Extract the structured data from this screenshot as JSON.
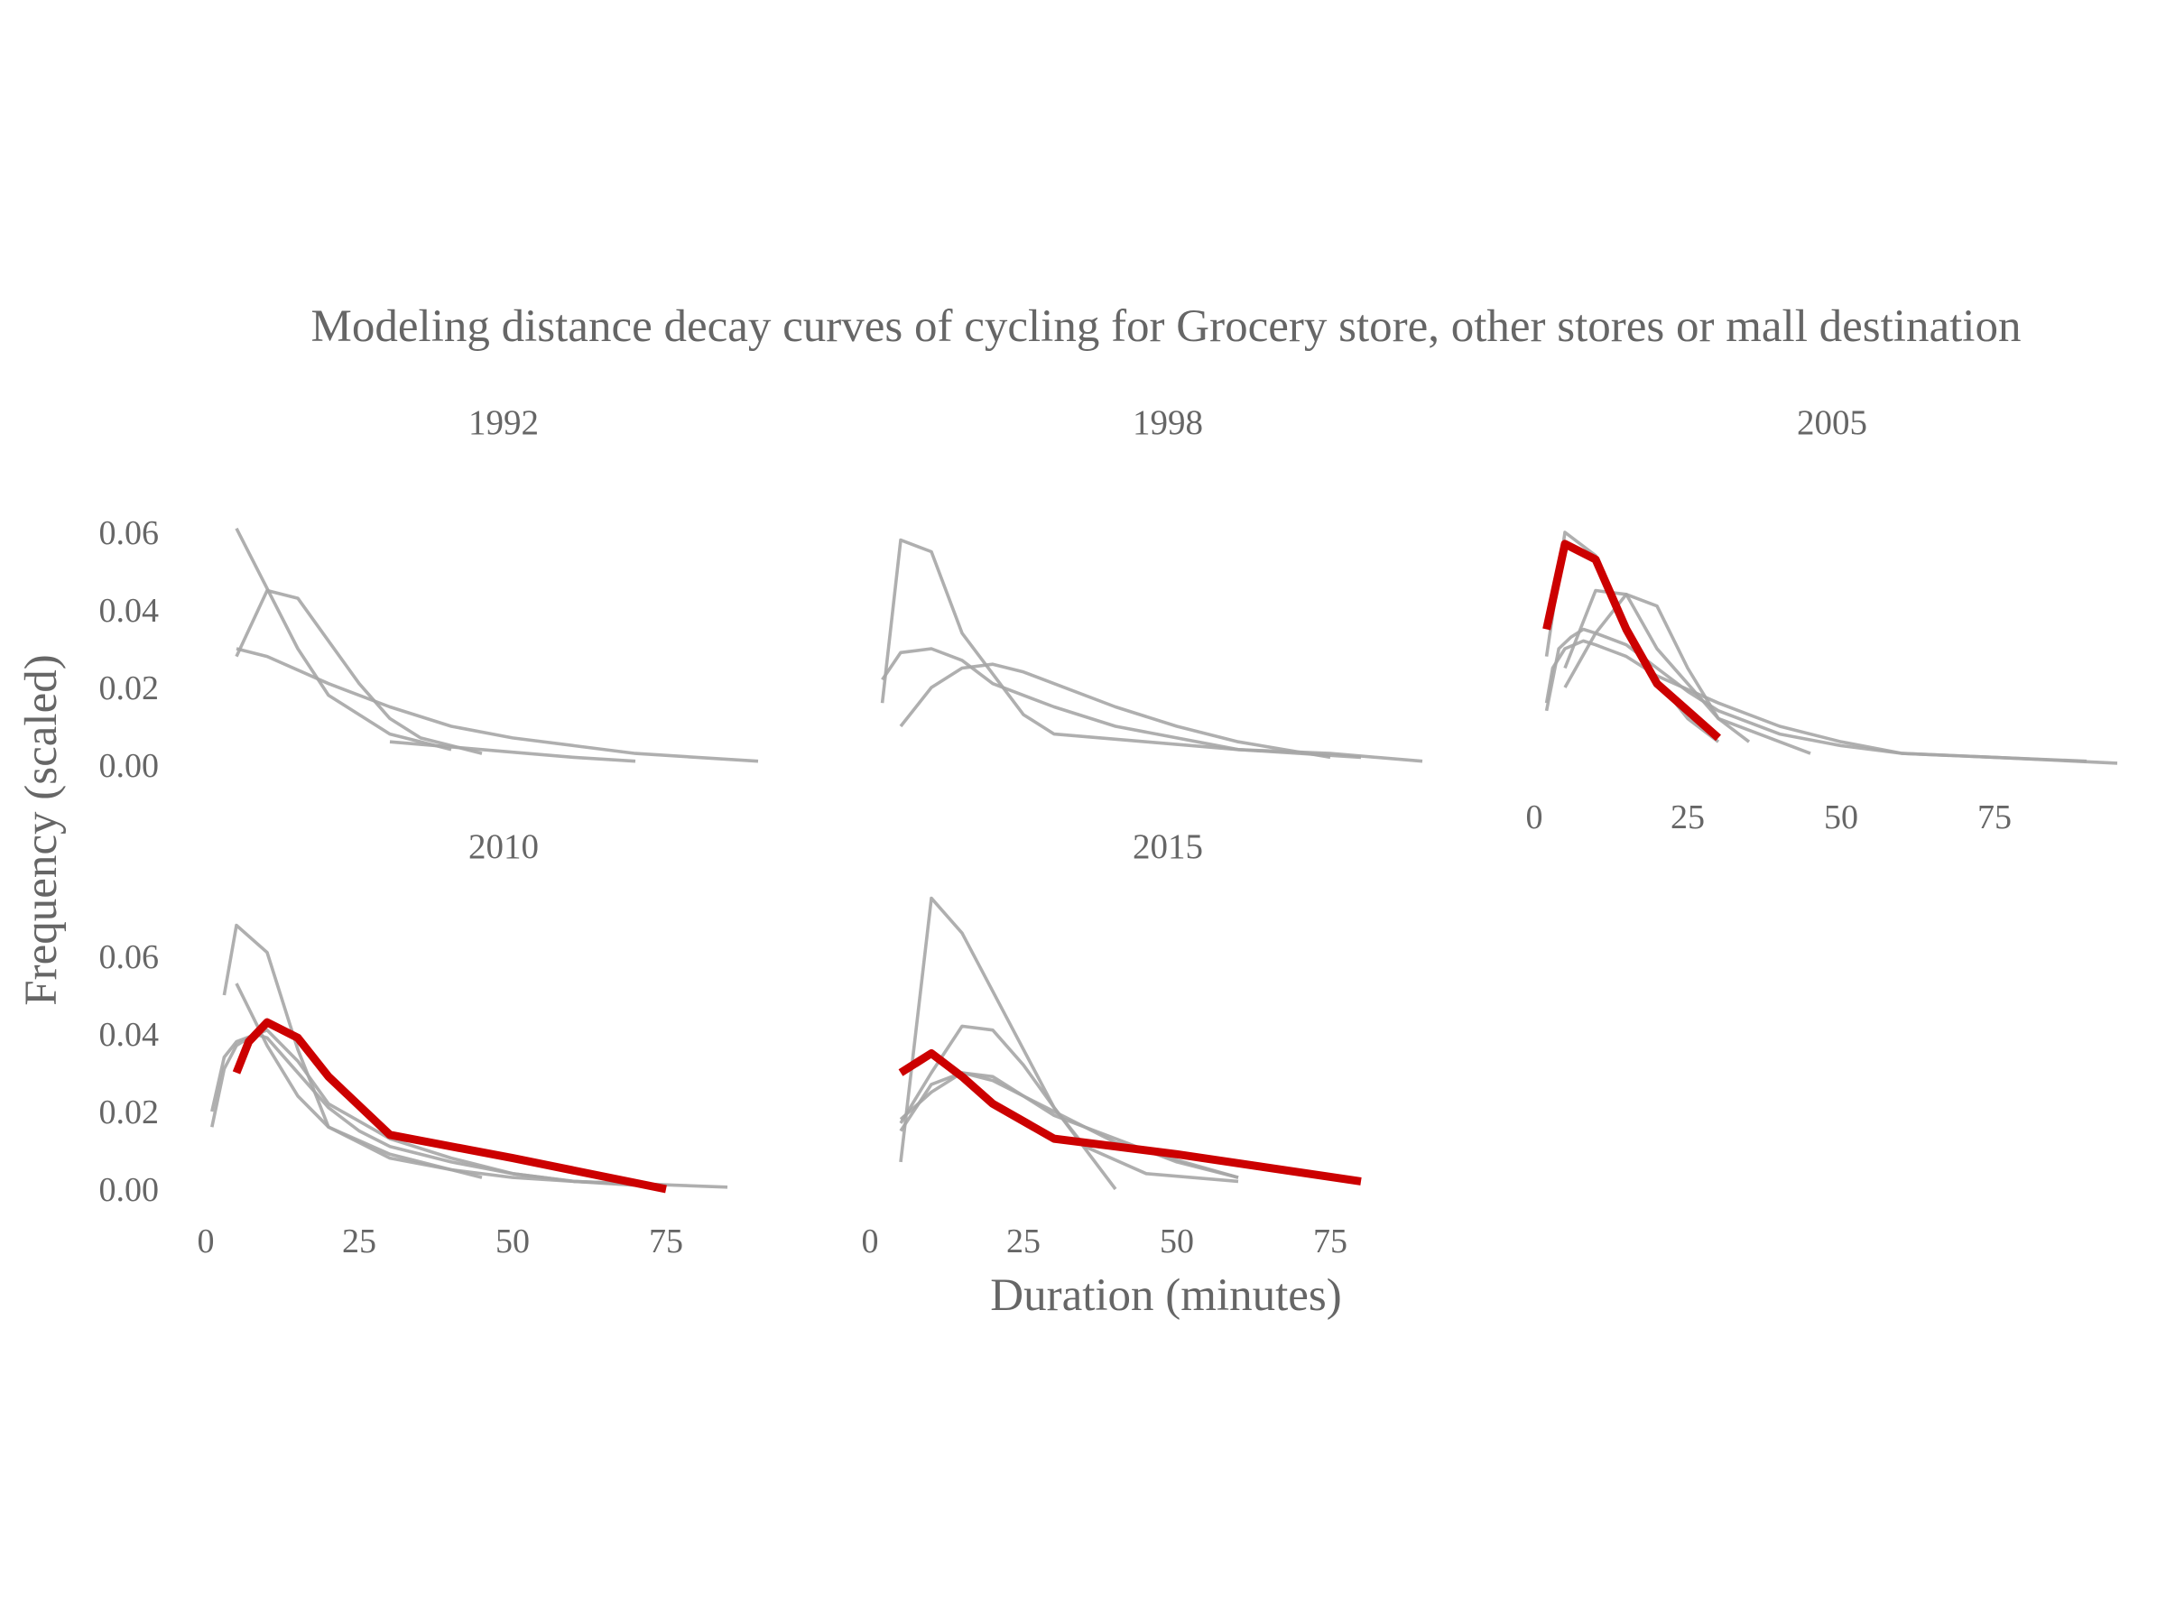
{
  "chart_data": {
    "type": "line",
    "title": "Modeling distance decay curves of cycling for Grocery store, other stores or mall destination",
    "xlabel": "Duration (minutes)",
    "ylabel": "Frequency (scaled)",
    "xlim": [
      0,
      95
    ],
    "ylim": [
      0,
      0.065
    ],
    "x_ticks": [
      "0",
      "25",
      "50",
      "75"
    ],
    "y_ticks": [
      "0.00",
      "0.02",
      "0.04",
      "0.06"
    ],
    "grid": false,
    "colors": {
      "background_curve": "#a6a6a6",
      "highlight_curve": "#cc0000",
      "text": "#666666"
    },
    "panels": [
      {
        "label": "1992",
        "series": [
          {
            "highlight": false,
            "x": [
              5,
              15,
              20,
              30,
              40
            ],
            "y": [
              0.061,
              0.03,
              0.018,
              0.008,
              0.004
            ]
          },
          {
            "highlight": false,
            "x": [
              5,
              10,
              15,
              20,
              25,
              30,
              35,
              45
            ],
            "y": [
              0.028,
              0.045,
              0.043,
              0.032,
              0.021,
              0.012,
              0.007,
              0.003
            ]
          },
          {
            "highlight": false,
            "x": [
              5,
              10,
              20,
              30,
              40,
              50,
              60,
              70,
              80,
              90
            ],
            "y": [
              0.03,
              0.028,
              0.021,
              0.015,
              0.01,
              0.007,
              0.005,
              0.003,
              0.002,
              0.001
            ]
          },
          {
            "highlight": false,
            "x": [
              30,
              45,
              60,
              70
            ],
            "y": [
              0.006,
              0.004,
              0.002,
              0.001
            ]
          }
        ]
      },
      {
        "label": "1998",
        "series": [
          {
            "highlight": false,
            "x": [
              2,
              5,
              10,
              15,
              25,
              30,
              45,
              60,
              70,
              80
            ],
            "y": [
              0.016,
              0.058,
              0.055,
              0.034,
              0.013,
              0.008,
              0.006,
              0.004,
              0.003,
              0.002
            ]
          },
          {
            "highlight": false,
            "x": [
              2,
              5,
              10,
              15,
              20,
              30,
              40,
              50,
              60,
              75,
              90
            ],
            "y": [
              0.022,
              0.029,
              0.03,
              0.027,
              0.021,
              0.015,
              0.01,
              0.007,
              0.004,
              0.003,
              0.001
            ]
          },
          {
            "highlight": false,
            "x": [
              5,
              10,
              15,
              20,
              25,
              30,
              40,
              50,
              60,
              75
            ],
            "y": [
              0.01,
              0.02,
              0.025,
              0.026,
              0.024,
              0.021,
              0.015,
              0.01,
              0.006,
              0.002
            ]
          }
        ]
      },
      {
        "label": "2005",
        "series": [
          {
            "highlight": false,
            "x": [
              2,
              5,
              10,
              15,
              20,
              25,
              30
            ],
            "y": [
              0.028,
              0.06,
              0.054,
              0.036,
              0.022,
              0.012,
              0.006
            ]
          },
          {
            "highlight": false,
            "x": [
              5,
              10,
              15,
              20,
              25,
              30,
              35
            ],
            "y": [
              0.02,
              0.034,
              0.044,
              0.041,
              0.025,
              0.012,
              0.006
            ]
          },
          {
            "highlight": false,
            "x": [
              2,
              3,
              5,
              8,
              10,
              15,
              20,
              30,
              40,
              50,
              60,
              75,
              90
            ],
            "y": [
              0.016,
              0.025,
              0.03,
              0.032,
              0.031,
              0.028,
              0.023,
              0.016,
              0.01,
              0.006,
              0.003,
              0.002,
              0.001
            ]
          },
          {
            "highlight": false,
            "x": [
              2,
              4,
              6,
              8,
              10,
              15,
              20,
              25,
              30,
              40,
              50,
              60,
              75,
              95
            ],
            "y": [
              0.014,
              0.03,
              0.033,
              0.035,
              0.034,
              0.031,
              0.025,
              0.019,
              0.014,
              0.008,
              0.005,
              0.003,
              0.002,
              0.0005
            ]
          },
          {
            "highlight": false,
            "x": [
              5,
              10,
              15,
              20,
              30,
              35,
              45
            ],
            "y": [
              0.025,
              0.045,
              0.044,
              0.03,
              0.012,
              0.009,
              0.003
            ]
          },
          {
            "highlight": true,
            "x": [
              2,
              5,
              10,
              15,
              20,
              25,
              30
            ],
            "y": [
              0.035,
              0.057,
              0.053,
              0.035,
              0.021,
              0.014,
              0.007
            ]
          }
        ]
      },
      {
        "label": "2010",
        "series": [
          {
            "highlight": false,
            "x": [
              3,
              5,
              10,
              15,
              20,
              25,
              30,
              40,
              50,
              60,
              85
            ],
            "y": [
              0.05,
              0.068,
              0.061,
              0.036,
              0.016,
              0.012,
              0.008,
              0.005,
              0.003,
              0.002,
              0.0005
            ]
          },
          {
            "highlight": false,
            "x": [
              5,
              10,
              15,
              20,
              30,
              40,
              45
            ],
            "y": [
              0.053,
              0.037,
              0.024,
              0.016,
              0.009,
              0.005,
              0.003
            ]
          },
          {
            "highlight": false,
            "x": [
              1,
              3,
              5,
              10,
              15,
              20,
              30,
              40,
              50,
              60,
              70
            ],
            "y": [
              0.02,
              0.034,
              0.038,
              0.041,
              0.033,
              0.022,
              0.013,
              0.008,
              0.004,
              0.002,
              0.001
            ]
          },
          {
            "highlight": false,
            "x": [
              1,
              3,
              5,
              8,
              10,
              15,
              20,
              25,
              30,
              40,
              50,
              60,
              75
            ],
            "y": [
              0.016,
              0.031,
              0.037,
              0.04,
              0.039,
              0.03,
              0.021,
              0.015,
              0.011,
              0.007,
              0.004,
              0.002,
              0.001
            ]
          },
          {
            "highlight": true,
            "x": [
              5,
              7,
              10,
              15,
              20,
              30,
              50,
              75
            ],
            "y": [
              0.03,
              0.038,
              0.043,
              0.039,
              0.029,
              0.014,
              0.008,
              0.0
            ]
          }
        ]
      },
      {
        "label": "2015",
        "series": [
          {
            "highlight": false,
            "x": [
              5,
              10,
              15,
              20,
              30,
              40
            ],
            "y": [
              0.007,
              0.075,
              0.066,
              0.051,
              0.021,
              0.0
            ]
          },
          {
            "highlight": false,
            "x": [
              5,
              10,
              15,
              20,
              25,
              30,
              35,
              45,
              60
            ],
            "y": [
              0.017,
              0.03,
              0.042,
              0.041,
              0.032,
              0.021,
              0.011,
              0.004,
              0.002
            ]
          },
          {
            "highlight": false,
            "x": [
              5,
              10,
              15,
              20,
              30,
              40,
              60
            ],
            "y": [
              0.018,
              0.025,
              0.03,
              0.028,
              0.02,
              0.012,
              0.003
            ]
          },
          {
            "highlight": false,
            "x": [
              5,
              10,
              15,
              20,
              25,
              30,
              40,
              50,
              60
            ],
            "y": [
              0.015,
              0.027,
              0.03,
              0.029,
              0.024,
              0.019,
              0.013,
              0.007,
              0.003
            ]
          },
          {
            "highlight": true,
            "x": [
              5,
              10,
              15,
              20,
              30,
              50,
              80
            ],
            "y": [
              0.03,
              0.035,
              0.029,
              0.022,
              0.013,
              0.009,
              0.002
            ]
          }
        ]
      }
    ]
  }
}
